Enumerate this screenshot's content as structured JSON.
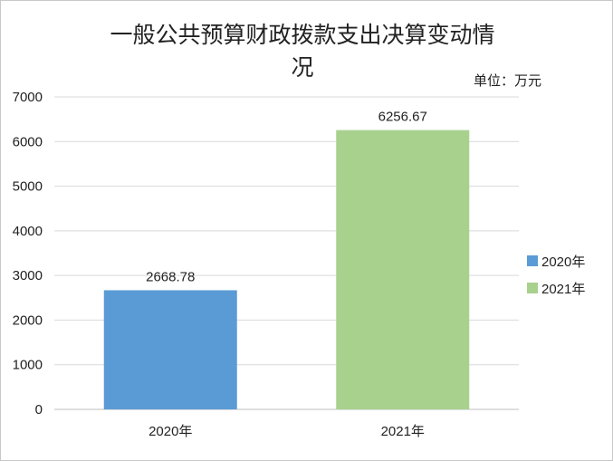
{
  "chart_data": {
    "type": "bar",
    "title_line1": "一般公共预算财政拨款支出决算变动情",
    "title_line2": "况",
    "unit": "单位：万元",
    "categories": [
      "2020年",
      "2021年"
    ],
    "values": [
      2668.78,
      6256.67
    ],
    "value_labels": [
      "2668.78",
      "6256.67"
    ],
    "colors": [
      "#5b9bd5",
      "#a9d18e"
    ],
    "y_ticks": [
      "0",
      "1000",
      "2000",
      "3000",
      "4000",
      "5000",
      "6000",
      "7000"
    ],
    "ylim": [
      0,
      7000
    ],
    "grid": true,
    "legend": {
      "position": "right",
      "entries": [
        "2020年",
        "2021年"
      ]
    }
  }
}
